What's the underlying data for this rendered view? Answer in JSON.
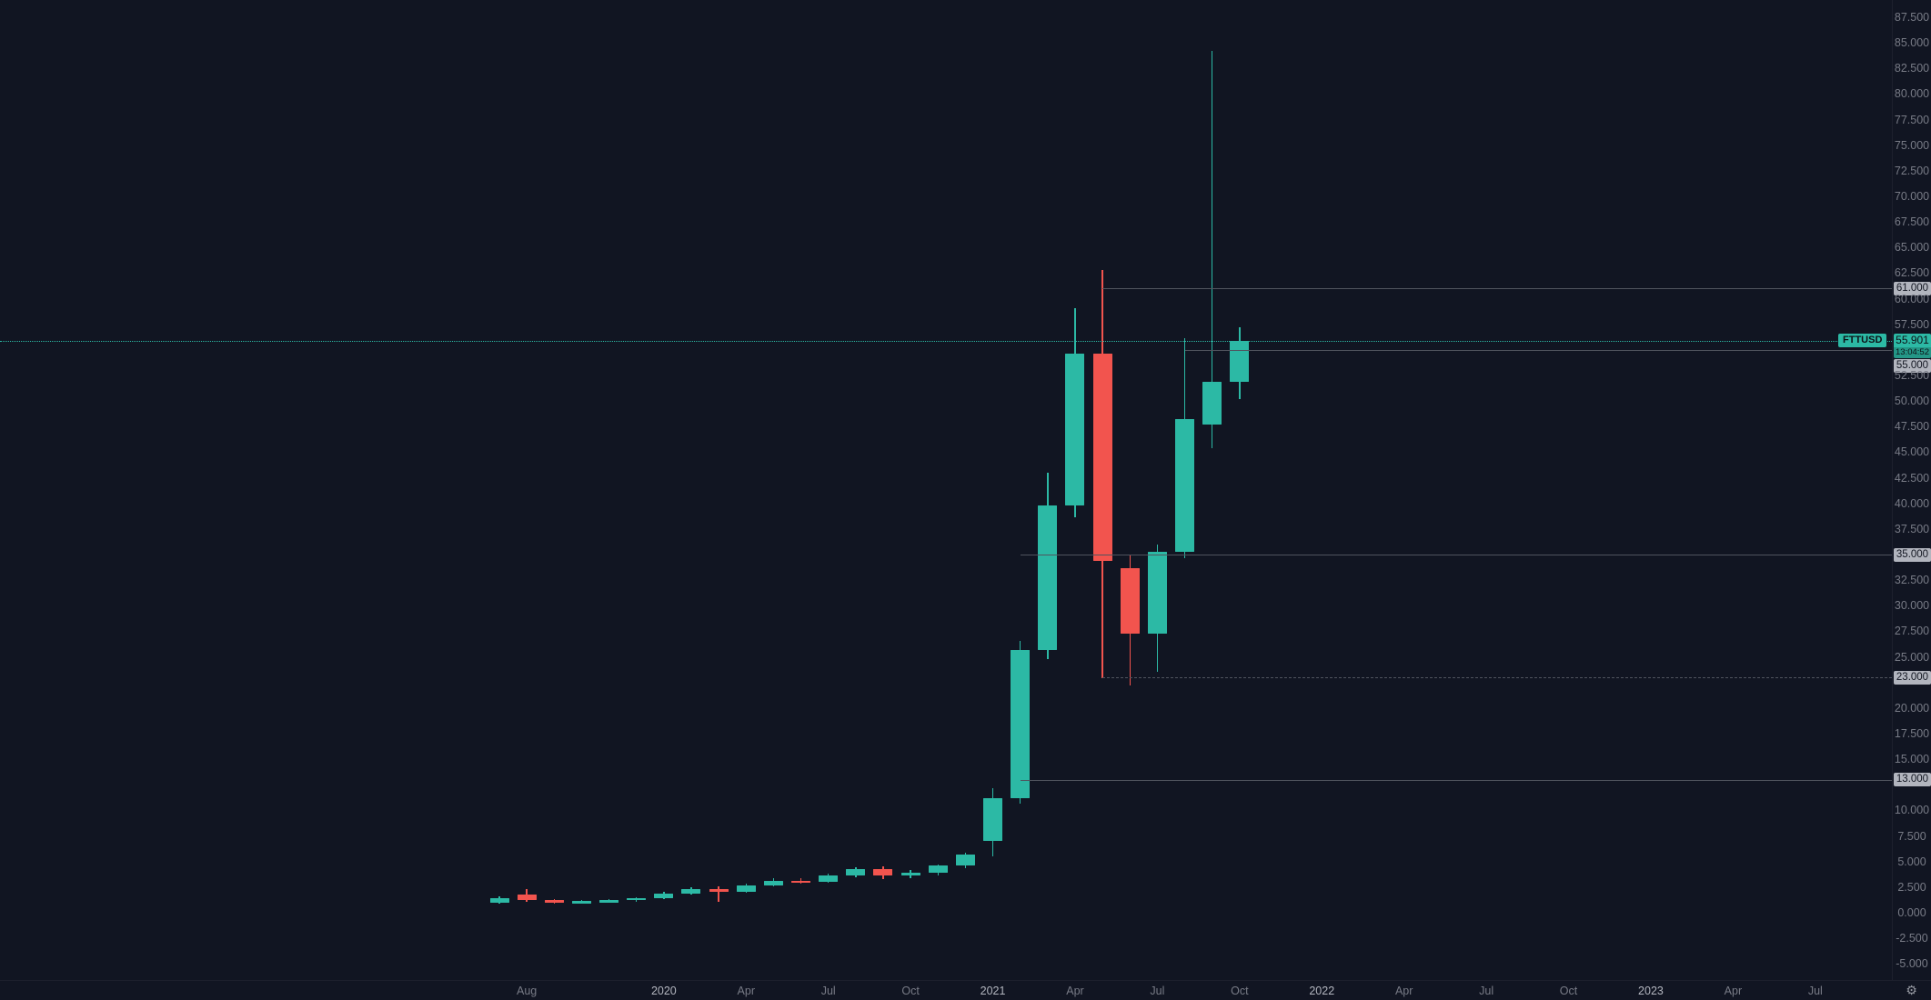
{
  "symbol": {
    "name": "FTTUSD",
    "price": "55.901",
    "countdown": "13:04:52"
  },
  "icons": {
    "gear": "⚙"
  },
  "chart_data": {
    "type": "candlestick",
    "title": "FTTUSD monthly candlestick chart",
    "last_price": 55.901,
    "ylim": [
      -7.5,
      89.2
    ],
    "price_tick_step": 2.5,
    "grid": "off",
    "price_ticks": [
      "87.500",
      "85.000",
      "82.500",
      "80.000",
      "77.500",
      "75.000",
      "72.500",
      "70.000",
      "67.500",
      "65.000",
      "62.500",
      "60.000",
      "57.500",
      "52.500",
      "50.000",
      "47.500",
      "45.000",
      "42.500",
      "40.000",
      "37.500",
      "32.500",
      "30.000",
      "27.500",
      "25.000",
      "20.000",
      "17.500",
      "15.000",
      "10.000",
      "7.500",
      "5.000",
      "2.500",
      "0.000",
      "-2.500",
      "-5.000"
    ],
    "x_axis_labels": [
      {
        "label": "Aug",
        "month_index": 1,
        "major": false
      },
      {
        "label": "2020",
        "month_index": 6,
        "major": true
      },
      {
        "label": "Apr",
        "month_index": 9,
        "major": false
      },
      {
        "label": "Jul",
        "month_index": 12,
        "major": false
      },
      {
        "label": "Oct",
        "month_index": 15,
        "major": false
      },
      {
        "label": "2021",
        "month_index": 18,
        "major": true
      },
      {
        "label": "Apr",
        "month_index": 21,
        "major": false
      },
      {
        "label": "Jul",
        "month_index": 24,
        "major": false
      },
      {
        "label": "Oct",
        "month_index": 27,
        "major": false
      },
      {
        "label": "2022",
        "month_index": 30,
        "major": true
      },
      {
        "label": "Apr",
        "month_index": 33,
        "major": false
      },
      {
        "label": "Jul",
        "month_index": 36,
        "major": false
      },
      {
        "label": "Oct",
        "month_index": 39,
        "major": false
      },
      {
        "label": "2023",
        "month_index": 42,
        "major": true
      },
      {
        "label": "Apr",
        "month_index": 45,
        "major": false
      },
      {
        "label": "Jul",
        "month_index": 48,
        "major": false
      }
    ],
    "candles": [
      {
        "month": "2019-07",
        "o": 1.0,
        "h": 1.6,
        "l": 0.85,
        "c": 1.45
      },
      {
        "month": "2019-08",
        "o": 1.75,
        "h": 2.3,
        "l": 1.05,
        "c": 1.2
      },
      {
        "month": "2019-09",
        "o": 1.2,
        "h": 1.35,
        "l": 0.92,
        "c": 1.05
      },
      {
        "month": "2019-10",
        "o": 1.05,
        "h": 1.22,
        "l": 0.9,
        "c": 1.12
      },
      {
        "month": "2019-11",
        "o": 1.12,
        "h": 1.32,
        "l": 1.0,
        "c": 1.2
      },
      {
        "month": "2019-12",
        "o": 1.2,
        "h": 1.52,
        "l": 1.08,
        "c": 1.42
      },
      {
        "month": "2020-01",
        "o": 1.42,
        "h": 2.05,
        "l": 1.32,
        "c": 1.9
      },
      {
        "month": "2020-02",
        "o": 1.9,
        "h": 2.5,
        "l": 1.75,
        "c": 2.35
      },
      {
        "month": "2020-03",
        "o": 2.35,
        "h": 2.6,
        "l": 1.05,
        "c": 2.05
      },
      {
        "month": "2020-04",
        "o": 2.05,
        "h": 2.85,
        "l": 1.95,
        "c": 2.7
      },
      {
        "month": "2020-05",
        "o": 2.7,
        "h": 3.35,
        "l": 2.55,
        "c": 3.15
      },
      {
        "month": "2020-06",
        "o": 3.15,
        "h": 3.4,
        "l": 2.85,
        "c": 3.0
      },
      {
        "month": "2020-07",
        "o": 3.0,
        "h": 3.85,
        "l": 2.9,
        "c": 3.65
      },
      {
        "month": "2020-08",
        "o": 3.65,
        "h": 4.45,
        "l": 3.45,
        "c": 4.25
      },
      {
        "month": "2020-09",
        "o": 4.25,
        "h": 4.5,
        "l": 3.3,
        "c": 3.65
      },
      {
        "month": "2020-10",
        "o": 3.65,
        "h": 4.15,
        "l": 3.35,
        "c": 3.95
      },
      {
        "month": "2020-11",
        "o": 3.95,
        "h": 4.75,
        "l": 3.6,
        "c": 4.6
      },
      {
        "month": "2020-12",
        "o": 4.6,
        "h": 5.85,
        "l": 4.35,
        "c": 5.65
      },
      {
        "month": "2021-01",
        "o": 7.0,
        "h": 12.2,
        "l": 5.55,
        "c": 11.2
      },
      {
        "month": "2021-02",
        "o": 11.2,
        "h": 26.6,
        "l": 10.7,
        "c": 25.7
      },
      {
        "month": "2021-03",
        "o": 25.7,
        "h": 43.0,
        "l": 24.8,
        "c": 39.8
      },
      {
        "month": "2021-04",
        "o": 39.8,
        "h": 59.1,
        "l": 38.6,
        "c": 54.6
      },
      {
        "month": "2021-05",
        "o": 54.6,
        "h": 62.8,
        "l": 22.9,
        "c": 34.4
      },
      {
        "month": "2021-06",
        "o": 33.7,
        "h": 35.0,
        "l": 22.2,
        "c": 27.3
      },
      {
        "month": "2021-07",
        "o": 27.3,
        "h": 36.0,
        "l": 23.5,
        "c": 35.3
      },
      {
        "month": "2021-08",
        "o": 35.3,
        "h": 56.1,
        "l": 34.6,
        "c": 48.2
      },
      {
        "month": "2021-09",
        "o": 47.7,
        "h": 84.2,
        "l": 45.4,
        "c": 51.9
      },
      {
        "month": "2021-10",
        "o": 51.9,
        "h": 57.2,
        "l": 50.2,
        "c": 55.901
      }
    ],
    "levels": [
      {
        "label": "61.000",
        "value": 61.0,
        "start_month_index": 22,
        "dashed": false
      },
      {
        "label": "55.000",
        "value": 55.0,
        "start_month_index": 25,
        "dashed": false
      },
      {
        "label": "35.000",
        "value": 35.0,
        "start_month_index": 19,
        "dashed": false
      },
      {
        "label": "23.000",
        "value": 23.0,
        "start_month_index": 22,
        "dashed": true
      },
      {
        "label": "13.000",
        "value": 13.0,
        "start_month_index": 19,
        "dashed": false
      }
    ],
    "colors": {
      "bg": "#111522",
      "up": "#2cb9a5",
      "down": "#f2544e",
      "level_line": "#50545e",
      "badge_bg": "#b2b5be",
      "badge_text": "#141823",
      "axis_text": "#787b86",
      "axis_text_major": "#b2b5be"
    }
  }
}
